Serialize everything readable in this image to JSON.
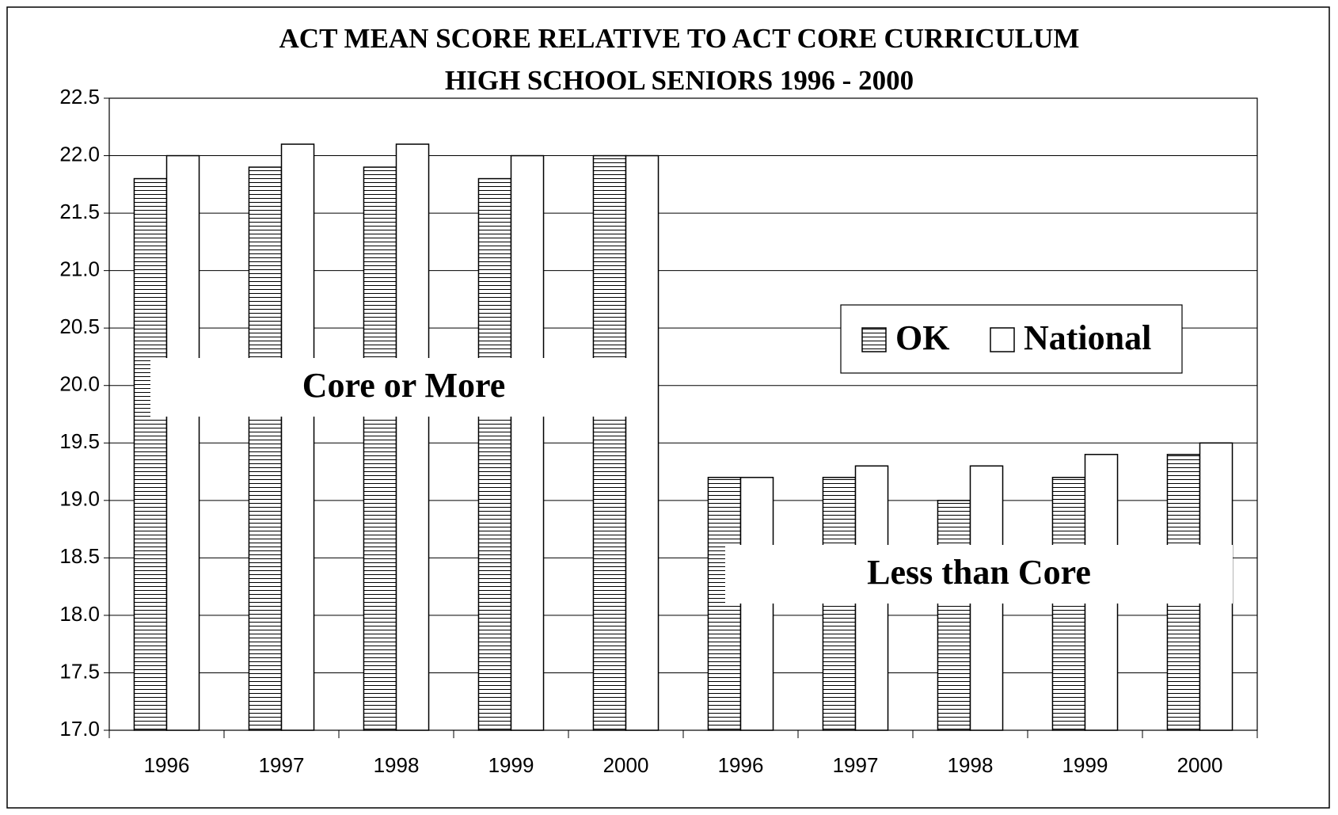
{
  "chart_data": {
    "type": "bar",
    "title": [
      "ACT MEAN SCORE RELATIVE TO ACT CORE CURRICULUM",
      "HIGH SCHOOL SENIORS 1996 - 2000"
    ],
    "categories": [
      "1996",
      "1997",
      "1998",
      "1999",
      "2000",
      "1996",
      "1997",
      "1998",
      "1999",
      "2000"
    ],
    "series": [
      {
        "name": "OK",
        "color": "#ffffff",
        "pattern": "horizontal-hatch",
        "values": [
          21.8,
          21.9,
          21.9,
          21.8,
          22.0,
          19.2,
          19.2,
          19.0,
          19.2,
          19.4
        ]
      },
      {
        "name": "National",
        "color": "#ffffff",
        "values": [
          22.0,
          22.1,
          22.1,
          22.0,
          22.0,
          19.2,
          19.3,
          19.3,
          19.4,
          19.5
        ]
      }
    ],
    "annotations": [
      "Core or More",
      "Less than Core"
    ],
    "ylim": [
      17,
      22.5
    ],
    "yticks": [
      {
        "value": 17,
        "label": "17.0"
      },
      17.5,
      {
        "value": 18,
        "label": "18.0"
      },
      18.5,
      {
        "value": 19,
        "label": "19.0"
      },
      19.5,
      {
        "value": 20,
        "label": "20.0"
      },
      20.5,
      {
        "value": 21,
        "label": "21.0"
      },
      21.5,
      {
        "value": 22,
        "label": "22.0"
      },
      22.5
    ],
    "grid": true,
    "legend": "right"
  }
}
